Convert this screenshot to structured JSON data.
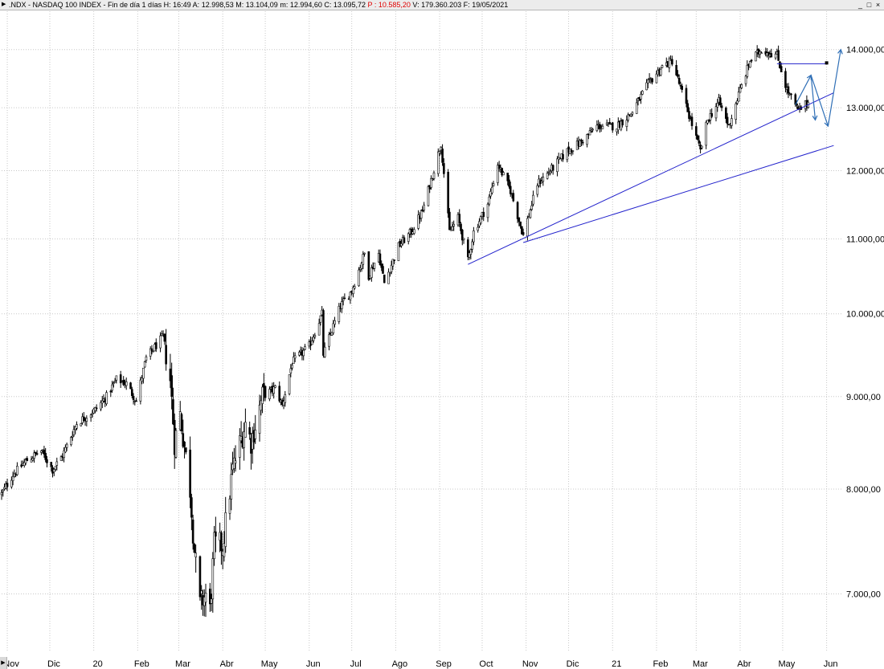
{
  "window": {
    "title_main": ".NDX - NASDAQ 100 INDEX - Fin de día 1 días",
    "fields": [
      {
        "label": "H:",
        "value": "16:49",
        "highlight": false
      },
      {
        "label": "A:",
        "value": "12.998,53",
        "highlight": false
      },
      {
        "label": "M:",
        "value": "13.104,09",
        "highlight": false
      },
      {
        "label": "m:",
        "value": "12.994,60",
        "highlight": false
      },
      {
        "label": "C:",
        "value": "13.095,72",
        "highlight": false
      },
      {
        "label": "P :",
        "value": "10.585,20",
        "highlight": true
      },
      {
        "label": "V:",
        "value": "179.360.203",
        "highlight": false
      },
      {
        "label": "F:",
        "value": "19/05/2021",
        "highlight": false
      }
    ],
    "buttons": {
      "minimize": "_",
      "maximize": "□",
      "close": "×"
    }
  },
  "colors": {
    "candle": "#000000",
    "grid": "#c8c8c8",
    "trendline": "#2222cc",
    "projection": "#2f6fb6",
    "title_highlight": "#e00000"
  },
  "chart_data": {
    "type": "candlestick",
    "title": ".NDX - NASDAQ 100 INDEX",
    "scale": "log",
    "ylim": [
      6500,
      14700
    ],
    "y_ticks": [
      7000,
      8000,
      9000,
      10000,
      11000,
      12000,
      13000,
      14000
    ],
    "y_tick_labels": [
      "7.000,00",
      "8.000,00",
      "9.000,00",
      "10.000,00",
      "11.000,00",
      "12.000,00",
      "13.000,00",
      "14.000,00"
    ],
    "x_range": [
      "2019-10-28",
      "2021-06-12"
    ],
    "x_ticks": [
      {
        "label": "Nov",
        "date": "2019-11-01"
      },
      {
        "label": "Dic",
        "date": "2019-12-01"
      },
      {
        "label": "20",
        "date": "2020-01-01"
      },
      {
        "label": "Feb",
        "date": "2020-02-01"
      },
      {
        "label": "Mar",
        "date": "2020-03-01"
      },
      {
        "label": "Abr",
        "date": "2020-04-01"
      },
      {
        "label": "May",
        "date": "2020-05-01"
      },
      {
        "label": "Jun",
        "date": "2020-06-01"
      },
      {
        "label": "Jul",
        "date": "2020-07-01"
      },
      {
        "label": "Ago",
        "date": "2020-08-01"
      },
      {
        "label": "Sep",
        "date": "2020-09-01"
      },
      {
        "label": "Oct",
        "date": "2020-10-01"
      },
      {
        "label": "Nov",
        "date": "2020-11-01"
      },
      {
        "label": "Dic",
        "date": "2020-12-01"
      },
      {
        "label": "21",
        "date": "2021-01-01"
      },
      {
        "label": "Feb",
        "date": "2021-02-01"
      },
      {
        "label": "Mar",
        "date": "2021-03-01"
      },
      {
        "label": "Abr",
        "date": "2021-04-01"
      },
      {
        "label": "May",
        "date": "2021-05-01"
      },
      {
        "label": "Jun",
        "date": "2021-06-01"
      }
    ],
    "price_path": [
      [
        "2019-10-28",
        7950
      ],
      [
        "2019-11-05",
        8150
      ],
      [
        "2019-11-15",
        8300
      ],
      [
        "2019-11-25",
        8400
      ],
      [
        "2019-12-03",
        8200
      ],
      [
        "2019-12-10",
        8350
      ],
      [
        "2019-12-20",
        8700
      ],
      [
        "2020-01-02",
        8850
      ],
      [
        "2020-01-10",
        9000
      ],
      [
        "2020-01-17",
        9200
      ],
      [
        "2020-01-24",
        9150
      ],
      [
        "2020-01-31",
        8950
      ],
      [
        "2020-02-07",
        9450
      ],
      [
        "2020-02-19",
        9718
      ],
      [
        "2020-02-24",
        9200
      ],
      [
        "2020-02-27",
        8500
      ],
      [
        "2020-03-02",
        8800
      ],
      [
        "2020-03-09",
        8000
      ],
      [
        "2020-03-12",
        7400
      ],
      [
        "2020-03-16",
        6900
      ],
      [
        "2020-03-20",
        7000
      ],
      [
        "2020-03-23",
        6850
      ],
      [
        "2020-03-26",
        7450
      ],
      [
        "2020-04-01",
        7450
      ],
      [
        "2020-04-08",
        8200
      ],
      [
        "2020-04-17",
        8700
      ],
      [
        "2020-04-21",
        8500
      ],
      [
        "2020-04-29",
        9000
      ],
      [
        "2020-05-08",
        9100
      ],
      [
        "2020-05-13",
        8900
      ],
      [
        "2020-05-20",
        9400
      ],
      [
        "2020-06-01",
        9600
      ],
      [
        "2020-06-10",
        10000
      ],
      [
        "2020-06-11",
        9500
      ],
      [
        "2020-06-23",
        10100
      ],
      [
        "2020-07-01",
        10300
      ],
      [
        "2020-07-10",
        10800
      ],
      [
        "2020-07-13",
        10500
      ],
      [
        "2020-07-20",
        10800
      ],
      [
        "2020-07-24",
        10400
      ],
      [
        "2020-08-03",
        10900
      ],
      [
        "2020-08-12",
        11100
      ],
      [
        "2020-08-20",
        11400
      ],
      [
        "2020-09-02",
        12420
      ],
      [
        "2020-09-08",
        11100
      ],
      [
        "2020-09-14",
        11300
      ],
      [
        "2020-09-21",
        10700
      ],
      [
        "2020-09-25",
        11100
      ],
      [
        "2020-10-05",
        11500
      ],
      [
        "2020-10-12",
        12100
      ],
      [
        "2020-10-21",
        11700
      ],
      [
        "2020-10-30",
        11050
      ],
      [
        "2020-11-09",
        11800
      ],
      [
        "2020-11-18",
        12000
      ],
      [
        "2020-11-30",
        12300
      ],
      [
        "2020-12-10",
        12450
      ],
      [
        "2020-12-21",
        12700
      ],
      [
        "2021-01-04",
        12700
      ],
      [
        "2021-01-14",
        12900
      ],
      [
        "2021-01-26",
        13400
      ],
      [
        "2021-02-05",
        13700
      ],
      [
        "2021-02-12",
        13800
      ],
      [
        "2021-02-25",
        12800
      ],
      [
        "2021-03-04",
        12300
      ],
      [
        "2021-03-09",
        12800
      ],
      [
        "2021-03-17",
        13100
      ],
      [
        "2021-03-24",
        12700
      ],
      [
        "2021-04-01",
        13300
      ],
      [
        "2021-04-08",
        13800
      ],
      [
        "2021-04-16",
        14000
      ],
      [
        "2021-04-27",
        13900
      ],
      [
        "2021-05-04",
        13300
      ],
      [
        "2021-05-12",
        12950
      ],
      [
        "2021-05-19",
        13096
      ]
    ],
    "trendlines": [
      {
        "from": [
          "2020-09-21",
          10650
        ],
        "to": [
          "2021-06-06",
          13250
        ]
      },
      {
        "from": [
          "2020-10-30",
          10950
        ],
        "to": [
          "2021-06-06",
          12390
        ]
      }
    ],
    "horizontal_line": {
      "from": "2021-04-27",
      "to": "2021-06-01",
      "value": 13750
    },
    "projection": [
      [
        "2021-05-10",
        13050
      ],
      [
        "2021-05-21",
        13550
      ],
      [
        "2021-06-02",
        12700
      ],
      [
        "2021-06-11",
        14000
      ]
    ],
    "projection_side": [
      [
        "2021-05-21",
        13550
      ],
      [
        "2021-05-24",
        12800
      ]
    ]
  }
}
